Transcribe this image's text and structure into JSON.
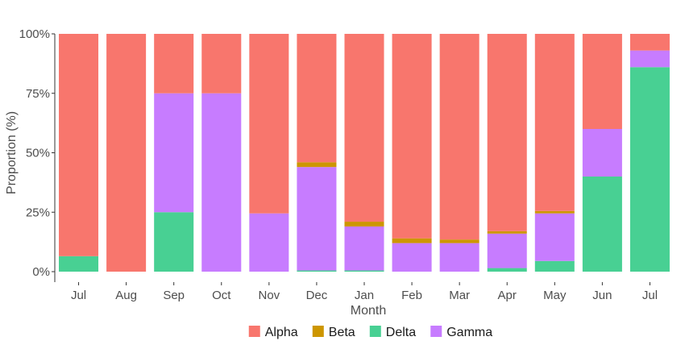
{
  "chart_data": {
    "type": "bar",
    "stacked": true,
    "percent": true,
    "title": "",
    "xlabel": "Month",
    "ylabel": "Proportion (%)",
    "ylim": [
      0,
      100
    ],
    "yticks": [
      0,
      25,
      50,
      75,
      100
    ],
    "ytick_labels": [
      "0%",
      "25%",
      "50%",
      "75%",
      "100%"
    ],
    "grid": false,
    "legend_position": "bottom",
    "categories": [
      "Jul",
      "Aug",
      "Sep",
      "Oct",
      "Nov",
      "Dec",
      "Jan",
      "Feb",
      "Mar",
      "Apr",
      "May",
      "Jun",
      "Jul"
    ],
    "series": [
      {
        "name": "Delta",
        "color": "#48D093",
        "values": [
          6.5,
          0,
          25,
          0,
          0,
          0.5,
          0.5,
          0,
          0,
          1.5,
          4.5,
          40,
          86
        ]
      },
      {
        "name": "Gamma",
        "color": "#C77CFF",
        "values": [
          0,
          0,
          50,
          75,
          24.5,
          43.5,
          18.5,
          12,
          12,
          14.5,
          20,
          20,
          7
        ]
      },
      {
        "name": "Beta",
        "color": "#CD9600",
        "values": [
          0,
          0,
          0,
          0,
          0,
          2,
          2,
          2,
          1.5,
          1,
          1,
          0,
          0
        ]
      },
      {
        "name": "Alpha",
        "color": "#F8766D",
        "values": [
          93.5,
          100,
          25,
          25,
          75.5,
          54,
          79,
          86,
          86.5,
          83,
          74.5,
          40,
          7
        ]
      }
    ],
    "legend_order": [
      "Alpha",
      "Beta",
      "Delta",
      "Gamma"
    ]
  }
}
